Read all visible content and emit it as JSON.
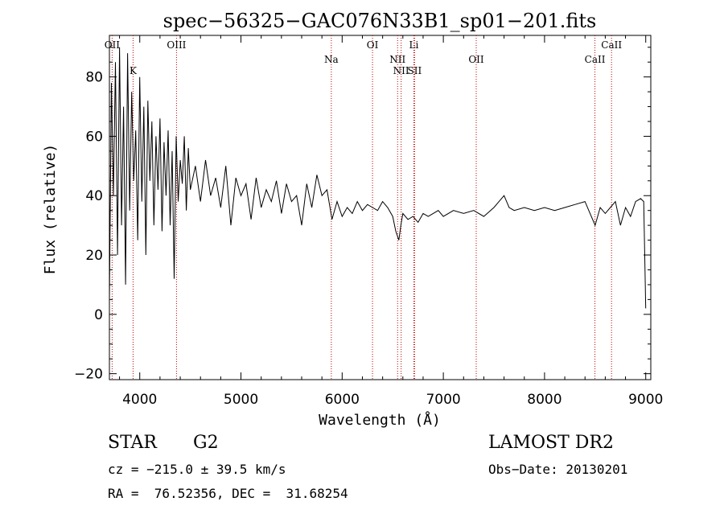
{
  "chart_data": {
    "type": "line",
    "title": "spec−56325−GAC076N33B1_sp01−201.fits",
    "xlabel": "Wavelength (Å)",
    "ylabel": "Flux (relative)",
    "xlim": [
      3700,
      9050
    ],
    "ylim": [
      -22,
      94
    ],
    "xticks": [
      4000,
      5000,
      6000,
      7000,
      8000,
      9000
    ],
    "yticks": [
      -20,
      0,
      20,
      40,
      60,
      80
    ],
    "ytick_labels": [
      "−20",
      "0",
      "20",
      "40",
      "60",
      "80"
    ],
    "grid": false,
    "legend": "none",
    "line_color": "#000000",
    "marker_color": "#c00000",
    "series": [
      {
        "x": [
          3700,
          3720,
          3740,
          3760,
          3780,
          3800,
          3820,
          3840,
          3860,
          3880,
          3900,
          3920,
          3940,
          3960,
          3980,
          4000,
          4020,
          4040,
          4060,
          4080,
          4100,
          4120,
          4140,
          4160,
          4180,
          4200,
          4220,
          4240,
          4260,
          4280,
          4300,
          4320,
          4340,
          4360,
          4380,
          4400,
          4420,
          4440,
          4460,
          4480,
          4500,
          4550,
          4600,
          4650,
          4700,
          4750,
          4800,
          4850,
          4900,
          4950,
          5000,
          5050,
          5100,
          5150,
          5200,
          5250,
          5300,
          5350,
          5400,
          5450,
          5500,
          5550,
          5600,
          5650,
          5700,
          5750,
          5800,
          5850,
          5900,
          5950,
          6000,
          6050,
          6100,
          6150,
          6200,
          6250,
          6300,
          6350,
          6400,
          6450,
          6500,
          6530,
          6560,
          6580,
          6600,
          6650,
          6700,
          6750,
          6800,
          6850,
          6900,
          6950,
          7000,
          7100,
          7200,
          7300,
          7400,
          7500,
          7550,
          7600,
          7650,
          7700,
          7800,
          7900,
          8000,
          8100,
          8200,
          8300,
          8400,
          8450,
          8500,
          8550,
          8600,
          8650,
          8700,
          8750,
          8800,
          8850,
          8900,
          8950,
          8980,
          9000
        ],
        "y": [
          5,
          78,
          40,
          85,
          20,
          90,
          30,
          70,
          10,
          88,
          35,
          75,
          45,
          62,
          25,
          80,
          38,
          70,
          20,
          72,
          45,
          65,
          30,
          60,
          42,
          66,
          28,
          58,
          40,
          62,
          30,
          55,
          12,
          60,
          38,
          52,
          44,
          60,
          35,
          56,
          42,
          50,
          38,
          52,
          40,
          46,
          36,
          50,
          30,
          46,
          40,
          44,
          32,
          46,
          36,
          42,
          38,
          45,
          34,
          44,
          38,
          40,
          30,
          44,
          36,
          47,
          40,
          42,
          32,
          38,
          33,
          36,
          34,
          38,
          35,
          37,
          36,
          35,
          38,
          36,
          33,
          28,
          25,
          30,
          34,
          32,
          33,
          31,
          34,
          33,
          34,
          35,
          33,
          35,
          34,
          35,
          33,
          36,
          38,
          40,
          36,
          35,
          36,
          35,
          36,
          35,
          36,
          37,
          38,
          34,
          30,
          36,
          34,
          36,
          38,
          30,
          36,
          33,
          38,
          39,
          38,
          2
        ]
      }
    ],
    "line_markers": [
      {
        "label": "OII",
        "x": 3727
      },
      {
        "label": "K",
        "x": 3934
      },
      {
        "label": "OIII",
        "x": 4363
      },
      {
        "label": "Na",
        "x": 5893
      },
      {
        "label": "OI",
        "x": 6300
      },
      {
        "label": "NII",
        "x": 6548
      },
      {
        "label": "NII",
        "x": 6583
      },
      {
        "label": "Li",
        "x": 6708
      },
      {
        "label": "SII",
        "x": 6716
      },
      {
        "label": "OII",
        "x": 7325
      },
      {
        "label": "CaII",
        "x": 8498
      },
      {
        "label": "CaII",
        "x": 8662
      }
    ]
  },
  "info": {
    "object_class": "STAR",
    "subclass": "G2",
    "survey": "LAMOST DR2",
    "redshift_line": "cz = −215.0 ± 39.5 km/s",
    "obs_date_line": "Obs−Date: 20130201",
    "coords_line": "RA =  76.52356, DEC =  31.68254"
  }
}
